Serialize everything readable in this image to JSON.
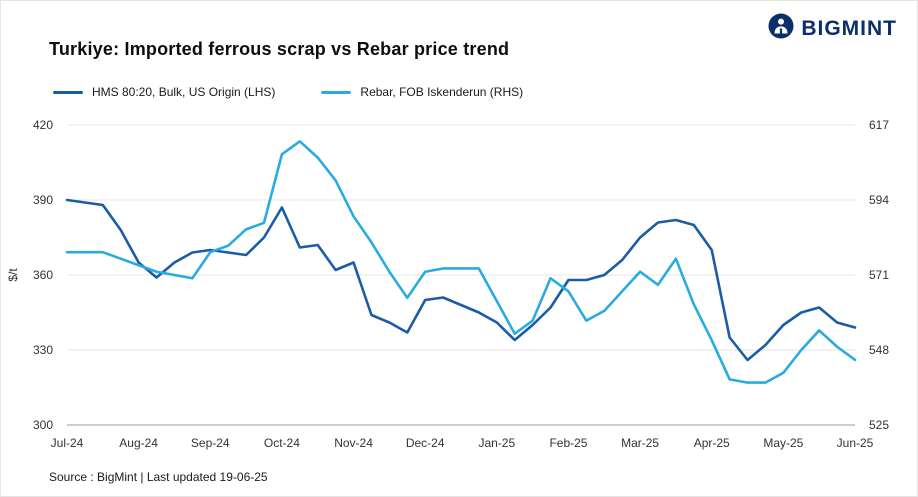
{
  "header": {
    "brand": "BIGMINT"
  },
  "chart_data": {
    "type": "line",
    "title": "Turkiye: Imported ferrous scrap vs Rebar price trend",
    "x_tick_labels": [
      "Jul-24",
      "Aug-24",
      "Sep-24",
      "Oct-24",
      "Nov-24",
      "Dec-24",
      "Jan-25",
      "Feb-25",
      "Mar-25",
      "Apr-25",
      "May-25",
      "Jun-25"
    ],
    "points_per_month": 4,
    "grid": "horizontal",
    "legend_position": "top-left",
    "left_axis": {
      "label": "$/t",
      "min": 300,
      "max": 420,
      "ticks": [
        300,
        330,
        360,
        390,
        420
      ]
    },
    "right_axis": {
      "min": 525,
      "max": 617,
      "ticks": [
        525,
        548,
        571,
        594,
        617
      ]
    },
    "series": [
      {
        "name": "HMS 80:20, Bulk, US Origin (LHS)",
        "axis": "left",
        "color": "#1a5ca8",
        "unit": "$/t",
        "values": [
          390,
          389,
          388,
          378,
          365,
          359,
          365,
          369,
          370,
          369,
          368,
          375,
          387,
          371,
          372,
          362,
          365,
          344,
          341,
          337,
          350,
          351,
          348,
          345,
          341,
          334,
          340,
          347,
          358,
          358,
          360,
          366,
          375,
          381,
          382,
          380,
          370,
          335,
          326,
          332,
          340,
          345,
          347,
          341,
          339
        ]
      },
      {
        "name": "Rebar, FOB Iskenderun (RHS)",
        "axis": "right",
        "color": "#29abe2",
        "unit": "$/t",
        "values": [
          578,
          578,
          578,
          576,
          574,
          572,
          571,
          570,
          578,
          580,
          585,
          587,
          608,
          612,
          607,
          600,
          589,
          581,
          572,
          564,
          572,
          573,
          573,
          573,
          563,
          553,
          557,
          570,
          566,
          557,
          560,
          566,
          572,
          568,
          576,
          562,
          551,
          539,
          538,
          538,
          541,
          548,
          554,
          549,
          545
        ]
      }
    ]
  },
  "footer": {
    "source": "Source : BigMint | Last updated 19-06-25"
  }
}
